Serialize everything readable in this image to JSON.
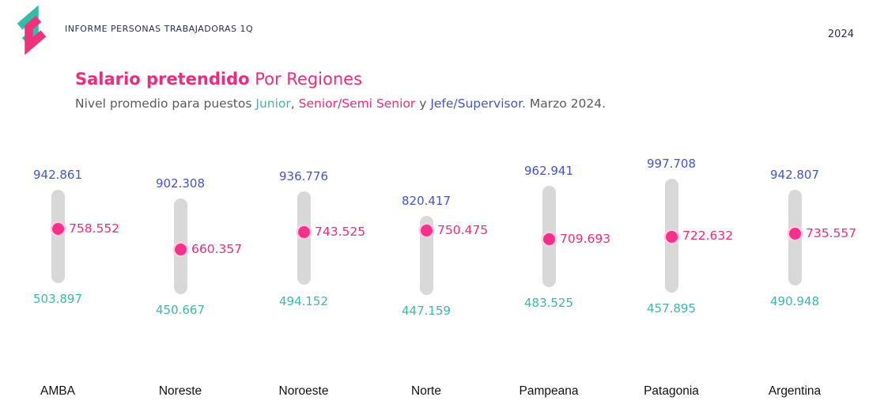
{
  "header": {
    "logo_icon": "zigzag-ribbons-logo",
    "report_title": "INFORME PERSONAS TRABAJADORAS 1Q",
    "year": "2024"
  },
  "title": {
    "bold": "Salario pretendido",
    "regular": " Por Regiones"
  },
  "subtitle": {
    "prefix": "Nivel promedio para puestos ",
    "junior": "Junior",
    "sep1": ", ",
    "senior": "Senior/Semi Senior",
    "sep2": " y ",
    "jefe": "Jefe/Supervisor",
    "suffix": ". Marzo 2024."
  },
  "colors": {
    "accent_pink": "#ee2b7d",
    "dot_pink": "#f5318c",
    "dot_ring": "#fbcfe2",
    "blue": "#4455c5",
    "teal": "#3eb7a8",
    "bar_gray": "#d8d8d8",
    "subtitle_gray": "#5b5b5d",
    "header_navy": "#262f55",
    "region_label_dark": "#121212",
    "logo_teal": "#35bca9",
    "logo_pink": "#f0317c"
  },
  "chart_data": {
    "type": "dumbbell",
    "description": "Vertical salary range bars per region with a dot marking the mid-level salary",
    "categories": [
      "AMBA",
      "Noreste",
      "Noroeste",
      "Norte",
      "Pampeana",
      "Patagonia",
      "Argentina"
    ],
    "series": [
      {
        "name": "Jefe/Supervisor",
        "role": "top",
        "color_role": "blue",
        "values": [
          942861,
          902308,
          936776,
          820417,
          962941,
          997708,
          942807
        ],
        "labels": [
          "942.861",
          "902.308",
          "936.776",
          "820.417",
          "962.941",
          "997.708",
          "942.807"
        ]
      },
      {
        "name": "Senior/Semi Senior",
        "role": "mid",
        "color_role": "pink",
        "values": [
          758552,
          660357,
          743525,
          750475,
          709693,
          722632,
          735557
        ],
        "labels": [
          "758.552",
          "660.357",
          "743.525",
          "750.475",
          "709.693",
          "722.632",
          "735.557"
        ]
      },
      {
        "name": "Junior",
        "role": "bottom",
        "color_role": "teal",
        "values": [
          503897,
          450667,
          494152,
          447159,
          483525,
          457895,
          490948
        ],
        "labels": [
          "503.897",
          "450.667",
          "494.152",
          "447.159",
          "483.525",
          "457.895",
          "490.948"
        ]
      }
    ],
    "value_format": "thousands separated by dot (es-AR pesos)",
    "ylim": [
      440000,
      1020000
    ],
    "grid": false,
    "legend_position": "inline-in-subtitle"
  }
}
